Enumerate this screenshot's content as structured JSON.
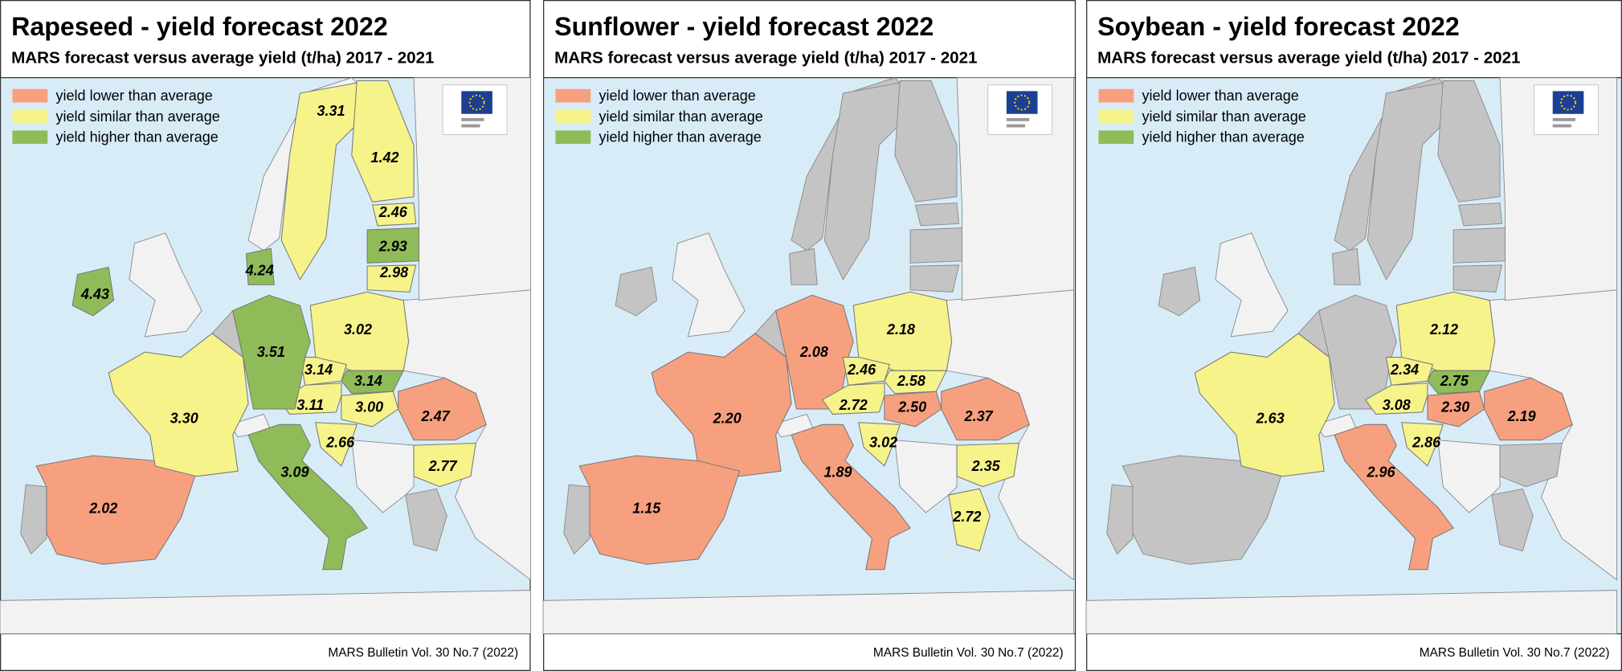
{
  "panels": [
    {
      "title": "Rapeseed - yield forecast 2022",
      "subtitle": "MARS forecast versus average yield (t/ha) 2017 - 2021",
      "legend": [
        {
          "text": "yield lower than average",
          "color": "#f7a07f",
          "values": [
            "2.02",
            "2.47"
          ]
        },
        {
          "text": "yield similar than average",
          "color": "#f6f38a",
          "values": [
            "3.31",
            "1.42",
            "2.46",
            "2.98",
            "3.02",
            "3.30",
            "3.14",
            "3.11",
            "3.00",
            "2.66",
            "2.77"
          ]
        },
        {
          "text": "yield higher than average",
          "color": "#8fbc59",
          "values": [
            "4.43",
            "4.24",
            "2.93",
            "3.51",
            "3.14",
            "3.09"
          ]
        }
      ],
      "source": "MARS Bulletin Vol. 30 No.7 (2022)"
    },
    {
      "title": "Sunflower - yield forecast 2022",
      "subtitle": "MARS forecast versus average yield (t/ha) 2017 - 2021",
      "legend": [
        {
          "text": "yield lower than average",
          "color": "#f7a07f",
          "values": [
            "2.08",
            "2.20",
            "1.15",
            "1.89",
            "2.50",
            "2.37"
          ]
        },
        {
          "text": "yield similar than average",
          "color": "#f6f38a",
          "values": [
            "2.18",
            "2.46",
            "2.58",
            "2.72",
            "3.02",
            "2.35",
            "2.72"
          ]
        },
        {
          "text": "yield higher than average",
          "color": "#8fbc59",
          "values": []
        }
      ],
      "source": "MARS Bulletin Vol. 30 No.7 (2022)"
    },
    {
      "title": "Soybean - yield forecast 2022",
      "subtitle": "MARS forecast versus average yield (t/ha) 2017 - 2021",
      "legend": [
        {
          "text": "yield lower than average",
          "color": "#f7a07f",
          "values": [
            "2.96",
            "2.30",
            "2.19"
          ]
        },
        {
          "text": "yield similar than average",
          "color": "#f6f38a",
          "values": [
            "2.12",
            "2.34",
            "3.08",
            "2.63",
            "2.86"
          ]
        },
        {
          "text": "yield higher than average",
          "color": "#8fbc59",
          "values": [
            "2.75"
          ]
        }
      ],
      "source": "MARS Bulletin Vol. 30 No.7 (2022)"
    }
  ]
}
